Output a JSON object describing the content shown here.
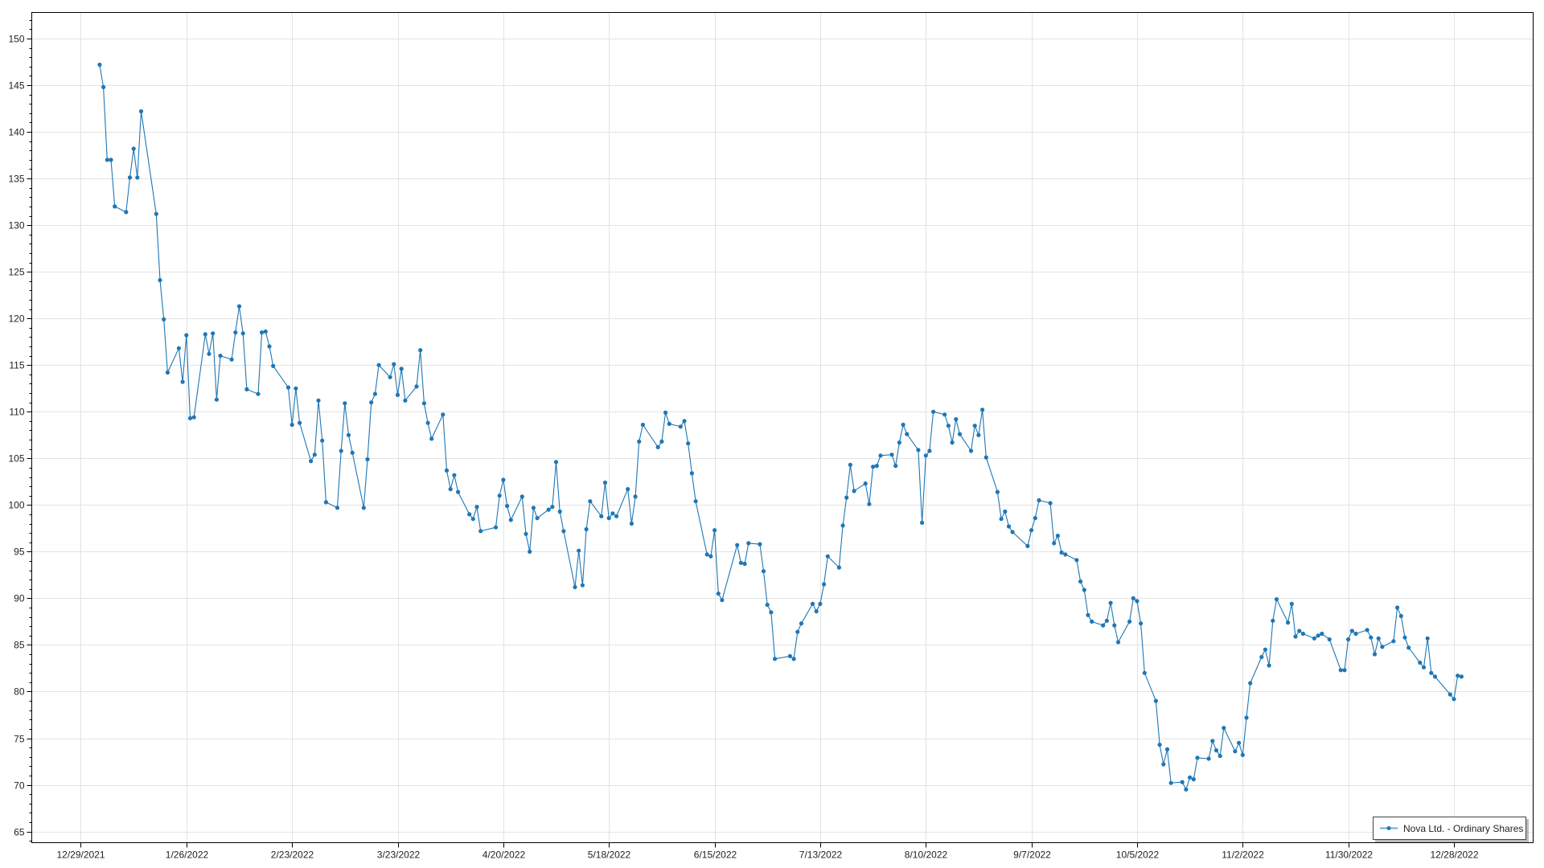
{
  "chart_data": {
    "type": "line",
    "title": "",
    "xlabel": "",
    "ylabel": "",
    "grid": true,
    "legend_position": "bottom-right",
    "ylim": [
      63.8,
      152.8
    ],
    "xlim": [
      "2021-12-16",
      "2023-01-18"
    ],
    "yticks": [
      65,
      70,
      75,
      80,
      85,
      90,
      95,
      100,
      105,
      110,
      115,
      120,
      125,
      130,
      135,
      140,
      145,
      150
    ],
    "xticks": [
      {
        "date": "2021-12-29",
        "label": "12/29/2021"
      },
      {
        "date": "2022-01-26",
        "label": "1/26/2022"
      },
      {
        "date": "2022-02-23",
        "label": "2/23/2022"
      },
      {
        "date": "2022-03-23",
        "label": "3/23/2022"
      },
      {
        "date": "2022-04-20",
        "label": "4/20/2022"
      },
      {
        "date": "2022-05-18",
        "label": "5/18/2022"
      },
      {
        "date": "2022-06-15",
        "label": "6/15/2022"
      },
      {
        "date": "2022-07-13",
        "label": "7/13/2022"
      },
      {
        "date": "2022-08-10",
        "label": "8/10/2022"
      },
      {
        "date": "2022-09-07",
        "label": "9/7/2022"
      },
      {
        "date": "2022-10-05",
        "label": "10/5/2022"
      },
      {
        "date": "2022-11-02",
        "label": "11/2/2022"
      },
      {
        "date": "2022-11-30",
        "label": "11/30/2022"
      },
      {
        "date": "2022-12-28",
        "label": "12/28/2022"
      }
    ],
    "colors": {
      "series": "#1f77b4",
      "grid": "#e3e3e3",
      "axis": "#000000"
    },
    "series": [
      {
        "name": "Nova Ltd. - Ordinary Shares",
        "x": [
          "2022-01-03",
          "2022-01-04",
          "2022-01-05",
          "2022-01-06",
          "2022-01-07",
          "2022-01-10",
          "2022-01-11",
          "2022-01-12",
          "2022-01-13",
          "2022-01-14",
          "2022-01-18",
          "2022-01-19",
          "2022-01-20",
          "2022-01-21",
          "2022-01-24",
          "2022-01-25",
          "2022-01-26",
          "2022-01-27",
          "2022-01-28",
          "2022-01-31",
          "2022-02-01",
          "2022-02-02",
          "2022-02-03",
          "2022-02-04",
          "2022-02-07",
          "2022-02-08",
          "2022-02-09",
          "2022-02-10",
          "2022-02-11",
          "2022-02-14",
          "2022-02-15",
          "2022-02-16",
          "2022-02-17",
          "2022-02-18",
          "2022-02-22",
          "2022-02-23",
          "2022-02-24",
          "2022-02-25",
          "2022-02-28",
          "2022-03-01",
          "2022-03-02",
          "2022-03-03",
          "2022-03-04",
          "2022-03-07",
          "2022-03-08",
          "2022-03-09",
          "2022-03-10",
          "2022-03-11",
          "2022-03-14",
          "2022-03-15",
          "2022-03-16",
          "2022-03-17",
          "2022-03-18",
          "2022-03-21",
          "2022-03-22",
          "2022-03-23",
          "2022-03-24",
          "2022-03-25",
          "2022-03-28",
          "2022-03-29",
          "2022-03-30",
          "2022-03-31",
          "2022-04-01",
          "2022-04-04",
          "2022-04-05",
          "2022-04-06",
          "2022-04-07",
          "2022-04-08",
          "2022-04-11",
          "2022-04-12",
          "2022-04-13",
          "2022-04-14",
          "2022-04-18",
          "2022-04-19",
          "2022-04-20",
          "2022-04-21",
          "2022-04-22",
          "2022-04-25",
          "2022-04-26",
          "2022-04-27",
          "2022-04-28",
          "2022-04-29",
          "2022-05-02",
          "2022-05-03",
          "2022-05-04",
          "2022-05-05",
          "2022-05-06",
          "2022-05-09",
          "2022-05-10",
          "2022-05-11",
          "2022-05-12",
          "2022-05-13",
          "2022-05-16",
          "2022-05-17",
          "2022-05-18",
          "2022-05-19",
          "2022-05-20",
          "2022-05-23",
          "2022-05-24",
          "2022-05-25",
          "2022-05-26",
          "2022-05-27",
          "2022-05-31",
          "2022-06-01",
          "2022-06-02",
          "2022-06-03",
          "2022-06-06",
          "2022-06-07",
          "2022-06-08",
          "2022-06-09",
          "2022-06-10",
          "2022-06-13",
          "2022-06-14",
          "2022-06-15",
          "2022-06-16",
          "2022-06-17",
          "2022-06-21",
          "2022-06-22",
          "2022-06-23",
          "2022-06-24",
          "2022-06-27",
          "2022-06-28",
          "2022-06-29",
          "2022-06-30",
          "2022-07-01",
          "2022-07-05",
          "2022-07-06",
          "2022-07-07",
          "2022-07-08",
          "2022-07-11",
          "2022-07-12",
          "2022-07-13",
          "2022-07-14",
          "2022-07-15",
          "2022-07-18",
          "2022-07-19",
          "2022-07-20",
          "2022-07-21",
          "2022-07-22",
          "2022-07-25",
          "2022-07-26",
          "2022-07-27",
          "2022-07-28",
          "2022-07-29",
          "2022-08-01",
          "2022-08-02",
          "2022-08-03",
          "2022-08-04",
          "2022-08-05",
          "2022-08-08",
          "2022-08-09",
          "2022-08-10",
          "2022-08-11",
          "2022-08-12",
          "2022-08-15",
          "2022-08-16",
          "2022-08-17",
          "2022-08-18",
          "2022-08-19",
          "2022-08-22",
          "2022-08-23",
          "2022-08-24",
          "2022-08-25",
          "2022-08-26",
          "2022-08-29",
          "2022-08-30",
          "2022-08-31",
          "2022-09-01",
          "2022-09-02",
          "2022-09-06",
          "2022-09-07",
          "2022-09-08",
          "2022-09-09",
          "2022-09-12",
          "2022-09-13",
          "2022-09-14",
          "2022-09-15",
          "2022-09-16",
          "2022-09-19",
          "2022-09-20",
          "2022-09-21",
          "2022-09-22",
          "2022-09-23",
          "2022-09-26",
          "2022-09-27",
          "2022-09-28",
          "2022-09-29",
          "2022-09-30",
          "2022-10-03",
          "2022-10-04",
          "2022-10-05",
          "2022-10-06",
          "2022-10-07",
          "2022-10-10",
          "2022-10-11",
          "2022-10-12",
          "2022-10-13",
          "2022-10-14",
          "2022-10-17",
          "2022-10-18",
          "2022-10-19",
          "2022-10-20",
          "2022-10-21",
          "2022-10-24",
          "2022-10-25",
          "2022-10-26",
          "2022-10-27",
          "2022-10-28",
          "2022-10-31",
          "2022-11-01",
          "2022-11-02",
          "2022-11-03",
          "2022-11-04",
          "2022-11-07",
          "2022-11-08",
          "2022-11-09",
          "2022-11-10",
          "2022-11-11",
          "2022-11-14",
          "2022-11-15",
          "2022-11-16",
          "2022-11-17",
          "2022-11-18",
          "2022-11-21",
          "2022-11-22",
          "2022-11-23",
          "2022-11-25",
          "2022-11-28",
          "2022-11-29",
          "2022-11-30",
          "2022-12-01",
          "2022-12-02",
          "2022-12-05",
          "2022-12-06",
          "2022-12-07",
          "2022-12-08",
          "2022-12-09",
          "2022-12-12",
          "2022-12-13",
          "2022-12-14",
          "2022-12-15",
          "2022-12-16",
          "2022-12-19",
          "2022-12-20",
          "2022-12-21",
          "2022-12-22",
          "2022-12-23",
          "2022-12-27",
          "2022-12-28",
          "2022-12-29",
          "2022-12-30"
        ],
        "y": [
          147.2,
          144.8,
          137,
          137,
          132,
          131.4,
          135.1,
          138.2,
          135.1,
          142.2,
          131.2,
          124.1,
          119.9,
          114.2,
          116.8,
          113.2,
          118.2,
          109.3,
          109.4,
          118.3,
          116.2,
          118.4,
          111.3,
          116,
          115.6,
          118.5,
          121.3,
          118.4,
          112.4,
          111.9,
          118.5,
          118.6,
          117,
          114.9,
          112.6,
          108.6,
          112.5,
          108.8,
          104.7,
          105.4,
          111.2,
          106.9,
          100.3,
          99.7,
          105.8,
          110.9,
          107.5,
          105.6,
          99.7,
          104.9,
          111,
          111.9,
          115,
          113.7,
          115.1,
          111.8,
          114.6,
          111.2,
          112.7,
          116.6,
          110.9,
          108.8,
          107.1,
          109.7,
          103.7,
          101.7,
          103.2,
          101.4,
          99,
          98.5,
          99.8,
          97.2,
          97.6,
          101,
          102.7,
          99.9,
          98.4,
          100.9,
          96.9,
          95,
          99.7,
          98.6,
          99.5,
          99.8,
          104.6,
          99.3,
          97.2,
          91.2,
          95.1,
          91.4,
          97.4,
          100.4,
          98.8,
          102.4,
          98.6,
          99.1,
          98.8,
          101.7,
          98,
          100.9,
          106.8,
          108.6,
          106.2,
          106.8,
          109.9,
          108.7,
          108.4,
          109,
          106.6,
          103.4,
          100.4,
          94.7,
          94.5,
          97.3,
          90.5,
          89.8,
          95.7,
          93.8,
          93.7,
          95.9,
          95.8,
          92.9,
          89.3,
          88.5,
          83.5,
          83.8,
          83.5,
          86.4,
          87.3,
          89.4,
          88.6,
          89.4,
          91.5,
          94.5,
          93.3,
          97.8,
          100.8,
          104.3,
          101.5,
          102.3,
          100.1,
          104.1,
          104.2,
          105.3,
          105.4,
          104.2,
          106.7,
          108.6,
          107.6,
          105.9,
          98.1,
          105.3,
          105.8,
          110,
          109.7,
          108.5,
          106.7,
          109.2,
          107.6,
          105.8,
          108.5,
          107.5,
          110.2,
          105.1,
          101.4,
          98.5,
          99.3,
          97.7,
          97.1,
          95.6,
          97.3,
          98.6,
          100.5,
          100.2,
          95.9,
          96.7,
          94.9,
          94.7,
          94.1,
          91.8,
          90.9,
          88.2,
          87.5,
          87.1,
          87.6,
          89.5,
          87.1,
          85.3,
          87.5,
          90,
          89.7,
          87.3,
          82,
          79,
          74.3,
          72.2,
          73.8,
          70.2,
          70.3,
          69.5,
          70.8,
          70.6,
          72.9,
          72.8,
          74.7,
          73.7,
          73.1,
          76.1,
          73.6,
          74.5,
          73.2,
          77.2,
          80.9,
          83.7,
          84.5,
          82.8,
          87.6,
          89.9,
          87.4,
          89.4,
          85.9,
          86.5,
          86.2,
          85.7,
          86,
          86.2,
          85.6,
          82.3,
          82.3,
          85.6,
          86.5,
          86.2,
          86.6,
          85.8,
          84,
          85.7,
          84.8,
          85.4,
          89,
          88.1,
          85.8,
          84.7,
          83.1,
          82.6,
          85.7,
          82,
          81.6,
          79.7,
          79.2,
          81.7,
          81.6
        ]
      }
    ]
  }
}
